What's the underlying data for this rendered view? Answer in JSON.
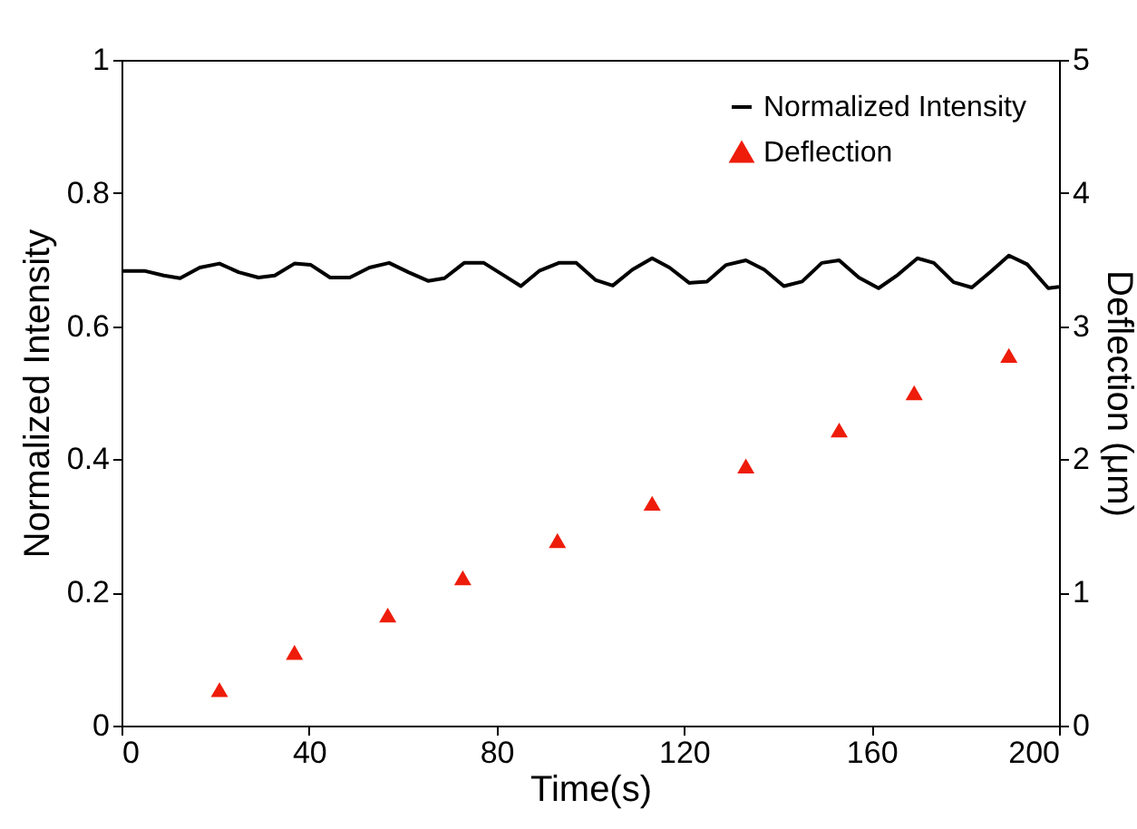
{
  "chart_data": {
    "type": "line",
    "xlabel": "Time(s)",
    "ylabel": "Normalized Intensity",
    "y2label": "Deflection (μm)",
    "xlim": [
      0,
      200
    ],
    "xticks": [
      0,
      40,
      80,
      120,
      160,
      200
    ],
    "ylim": [
      0,
      1
    ],
    "yticks": [
      0,
      0.2,
      0.4,
      0.6,
      0.8,
      1
    ],
    "y2lim": [
      0,
      5
    ],
    "y2ticks": [
      0,
      1,
      2,
      3,
      4,
      5
    ],
    "legend": "top right",
    "grid": false,
    "series": [
      {
        "name": "Normalized Intensity",
        "type": "line",
        "color": "#000000",
        "marker": "none",
        "line_style": "solid",
        "x": [
          0,
          4.9,
          9,
          12.5,
          16.7,
          20.9,
          25,
          29.2,
          32.7,
          36.9,
          40.4,
          44.5,
          48.7,
          52.9,
          57.1,
          61.2,
          65.4,
          68.9,
          73.1,
          77.3,
          81.4,
          85.2,
          89.1,
          93.3,
          97,
          101.2,
          104.8,
          109,
          113.2,
          116.9,
          121.1,
          124.9,
          129,
          133.2,
          137.1,
          141.3,
          145.2,
          149.4,
          153.1,
          157.3,
          161.5,
          165.6,
          169.8,
          173.3,
          177.5,
          181.4,
          185.6,
          189.3,
          193.2,
          197.7,
          200
        ],
        "values": [
          0.683,
          0.683,
          0.676,
          0.672,
          0.688,
          0.694,
          0.681,
          0.673,
          0.676,
          0.694,
          0.692,
          0.673,
          0.673,
          0.688,
          0.695,
          0.681,
          0.668,
          0.672,
          0.695,
          0.695,
          0.677,
          0.66,
          0.683,
          0.695,
          0.695,
          0.669,
          0.661,
          0.685,
          0.702,
          0.688,
          0.665,
          0.667,
          0.692,
          0.699,
          0.685,
          0.66,
          0.667,
          0.695,
          0.699,
          0.673,
          0.657,
          0.677,
          0.702,
          0.695,
          0.666,
          0.658,
          0.683,
          0.706,
          0.693,
          0.657,
          0.659
        ]
      },
      {
        "name": "Deflection",
        "type": "scatter",
        "axis": "y2",
        "color": "#ee1c0a",
        "marker": "triangle",
        "x": [
          20.9,
          36.9,
          56.8,
          72.8,
          93,
          113.2,
          133.2,
          153.1,
          169.1,
          189.3
        ],
        "values": [
          0.27,
          0.55,
          0.83,
          1.11,
          1.39,
          1.67,
          1.95,
          2.22,
          2.5,
          2.78
        ]
      }
    ]
  }
}
